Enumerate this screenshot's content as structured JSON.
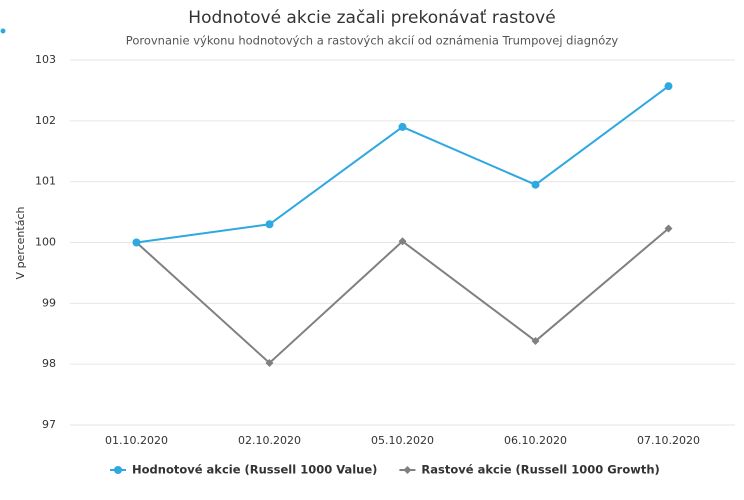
{
  "chart_data": {
    "type": "line",
    "title": "Hodnotové akcie začali prekonávať rastové",
    "subtitle": "Porovnanie výkonu hodnotových a rastových akcií od oznámenia Trumpovej diagnózy",
    "y_label": "V percentách",
    "categories": [
      "01.10.2020",
      "02.10.2020",
      "05.10.2020",
      "06.10.2020",
      "07.10.2020"
    ],
    "series": [
      {
        "name": "Hodnotové akcie (Russell 1000 Value)",
        "color": "#2ea8e0",
        "marker": "circle",
        "values": [
          100,
          100.3,
          101.9,
          100.95,
          102.57
        ]
      },
      {
        "name": "Rastové akcie (Russell 1000 Growth)",
        "color": "#808080",
        "marker": "diamond",
        "values": [
          100,
          98.02,
          100.02,
          98.38,
          100.23
        ]
      }
    ],
    "ylim": [
      97,
      103
    ],
    "yticks": [
      97,
      98,
      99,
      100,
      101,
      102,
      103
    ],
    "grid": true,
    "legend": "bottom"
  }
}
